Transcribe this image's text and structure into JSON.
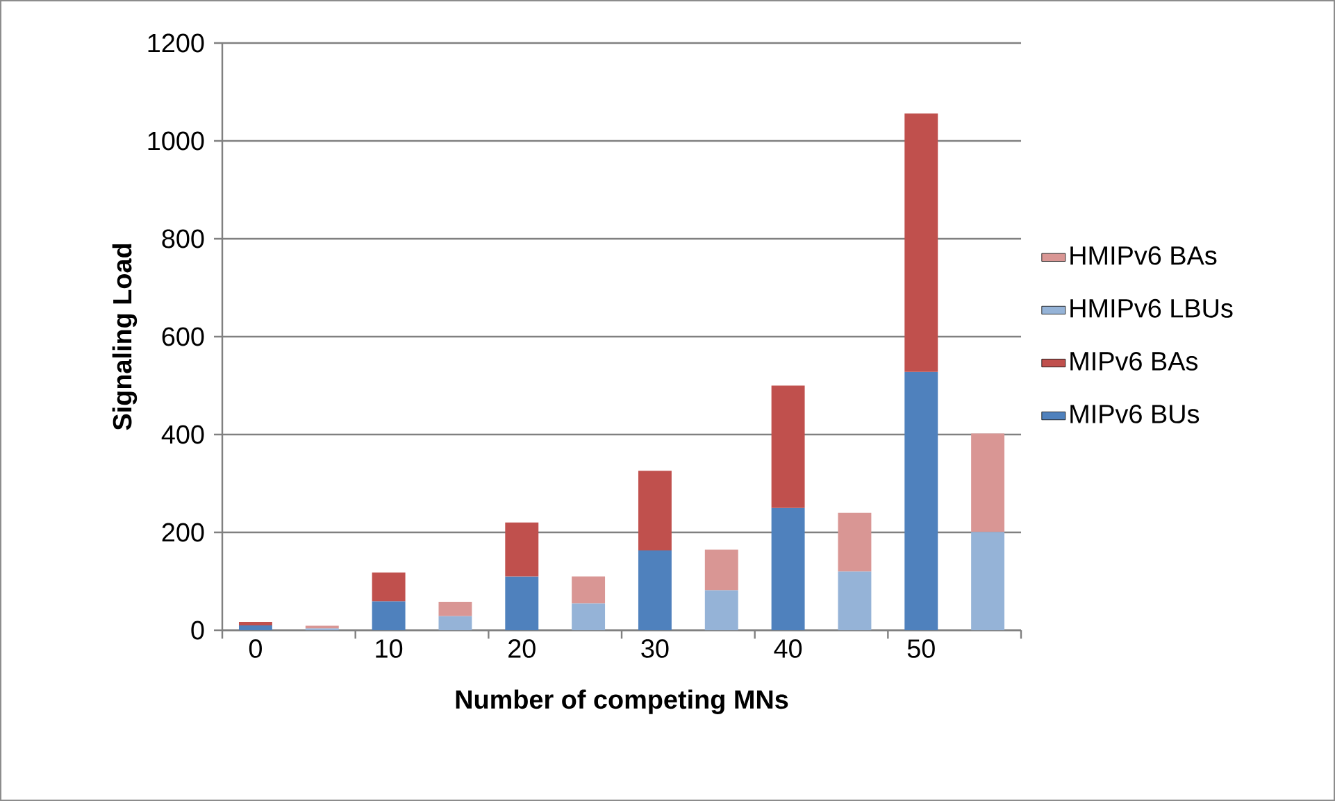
{
  "chart_data": {
    "type": "bar",
    "stacked": true,
    "xlabel": "Number of competing MNs",
    "ylabel": "Signaling Load",
    "categories": [
      "0",
      null,
      "10",
      null,
      "20",
      null,
      "30",
      null,
      "40",
      null,
      "50",
      null
    ],
    "series": [
      {
        "name": "MIPv6 BUs",
        "color": "#4f81bd",
        "values": [
          10,
          null,
          59,
          null,
          110,
          null,
          163,
          null,
          250,
          null,
          528,
          null
        ]
      },
      {
        "name": "MIPv6 BAs",
        "color": "#c0504d",
        "values": [
          7,
          null,
          59,
          null,
          110,
          null,
          163,
          null,
          250,
          null,
          528,
          null
        ]
      },
      {
        "name": "HMIPv6 LBUs",
        "color": "#95b3d7",
        "values": [
          null,
          4,
          null,
          29,
          null,
          55,
          null,
          82,
          null,
          120,
          null,
          201
        ]
      },
      {
        "name": "HMIPv6 BAs",
        "color": "#d99694",
        "values": [
          null,
          5,
          null,
          29,
          null,
          55,
          null,
          83,
          null,
          120,
          null,
          201
        ]
      }
    ],
    "ylim": [
      0,
      1200
    ],
    "yticks": [
      0,
      200,
      400,
      600,
      800,
      1000,
      1200
    ],
    "grid": "y",
    "legend": "right"
  }
}
